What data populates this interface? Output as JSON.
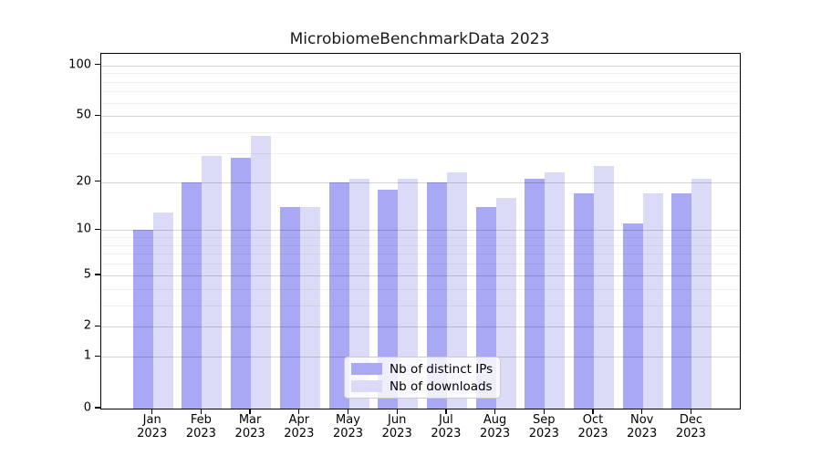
{
  "title": "MicrobiomeBenchmarkData 2023",
  "colors": {
    "ips_bar": "#a8a8f4",
    "downloads_bar": "#dbdbf8",
    "axis": "#000000",
    "grid_major": "#d4d4d4",
    "grid_minor": "#f0f0f0"
  },
  "legend": {
    "items": [
      {
        "label": "Nb of distinct IPs",
        "series": "ips"
      },
      {
        "label": "Nb of downloads",
        "series": "downloads"
      }
    ],
    "position": "lower center"
  },
  "chart_data": {
    "type": "bar",
    "title": "MicrobiomeBenchmarkData 2023",
    "categories": [
      "Jan 2023",
      "Feb 2023",
      "Mar 2023",
      "Apr 2023",
      "May 2023",
      "Jun 2023",
      "Jul 2023",
      "Aug 2023",
      "Sep 2023",
      "Oct 2023",
      "Nov 2023",
      "Dec 2023"
    ],
    "series": [
      {
        "name": "Nb of distinct IPs",
        "color": "#a8a8f4",
        "values": [
          10,
          20,
          28,
          14,
          20,
          18,
          20,
          14,
          21,
          17,
          11,
          17
        ]
      },
      {
        "name": "Nb of downloads",
        "color": "#dbdbf8",
        "values": [
          13,
          29,
          38,
          14,
          21,
          21,
          23,
          16,
          23,
          25,
          17,
          21
        ]
      }
    ],
    "xlabel": "",
    "ylabel": "",
    "yscale": "log1p",
    "ylim": [
      0,
      117
    ],
    "y_ticks": [
      0,
      1,
      2,
      5,
      10,
      20,
      50,
      100
    ],
    "y_minor_gridlines": [
      3,
      4,
      6,
      7,
      8,
      9,
      30,
      40,
      60,
      70,
      80,
      90
    ],
    "grid": "on, drawn over bars",
    "legend_position": "lower center"
  }
}
